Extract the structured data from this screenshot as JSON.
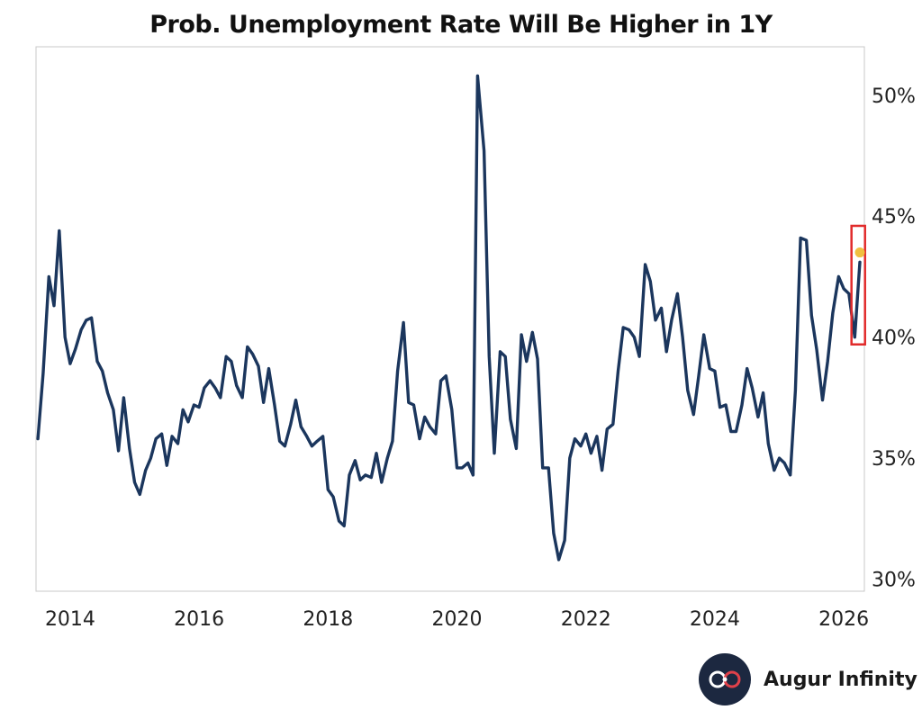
{
  "chart_data": {
    "type": "line",
    "title": "Prob. Unemployment Rate Will Be Higher in 1Y",
    "xlabel": "",
    "ylabel": "",
    "xlim": [
      2013.47,
      2026.32
    ],
    "ylim": [
      29.5,
      52
    ],
    "x_ticks": [
      {
        "value": 2014,
        "label": "2014"
      },
      {
        "value": 2016,
        "label": "2016"
      },
      {
        "value": 2018,
        "label": "2018"
      },
      {
        "value": 2020,
        "label": "2020"
      },
      {
        "value": 2022,
        "label": "2022"
      },
      {
        "value": 2024,
        "label": "2024"
      },
      {
        "value": 2026,
        "label": "2026"
      }
    ],
    "y_ticks": [
      {
        "value": 30,
        "label": "30%"
      },
      {
        "value": 35,
        "label": "35%"
      },
      {
        "value": 40,
        "label": "40%"
      },
      {
        "value": 45,
        "label": "45%"
      },
      {
        "value": 50,
        "label": "50%"
      }
    ],
    "y_axis_side": "right",
    "grid": false,
    "series": [
      {
        "name": "Prob. Unemployment Rate Will Be Higher in 1Y",
        "color": "#1b365d",
        "points": [
          [
            2013.5,
            35.8
          ],
          [
            2013.58,
            38.5
          ],
          [
            2013.67,
            42.5
          ],
          [
            2013.75,
            41.3
          ],
          [
            2013.83,
            44.4
          ],
          [
            2013.92,
            40.0
          ],
          [
            2014.0,
            38.9
          ],
          [
            2014.08,
            39.5
          ],
          [
            2014.17,
            40.3
          ],
          [
            2014.25,
            40.7
          ],
          [
            2014.33,
            40.8
          ],
          [
            2014.42,
            39.0
          ],
          [
            2014.5,
            38.6
          ],
          [
            2014.58,
            37.7
          ],
          [
            2014.67,
            37.0
          ],
          [
            2014.75,
            35.3
          ],
          [
            2014.83,
            37.5
          ],
          [
            2014.92,
            35.4
          ],
          [
            2015.0,
            34.0
          ],
          [
            2015.08,
            33.5
          ],
          [
            2015.17,
            34.5
          ],
          [
            2015.25,
            35.0
          ],
          [
            2015.33,
            35.8
          ],
          [
            2015.42,
            36.0
          ],
          [
            2015.5,
            34.7
          ],
          [
            2015.58,
            35.9
          ],
          [
            2015.67,
            35.6
          ],
          [
            2015.75,
            37.0
          ],
          [
            2015.83,
            36.5
          ],
          [
            2015.92,
            37.2
          ],
          [
            2016.0,
            37.1
          ],
          [
            2016.08,
            37.9
          ],
          [
            2016.17,
            38.2
          ],
          [
            2016.25,
            37.9
          ],
          [
            2016.33,
            37.5
          ],
          [
            2016.42,
            39.2
          ],
          [
            2016.5,
            39.0
          ],
          [
            2016.58,
            38.0
          ],
          [
            2016.67,
            37.5
          ],
          [
            2016.75,
            39.6
          ],
          [
            2016.83,
            39.3
          ],
          [
            2016.92,
            38.8
          ],
          [
            2017.0,
            37.3
          ],
          [
            2017.08,
            38.7
          ],
          [
            2017.17,
            37.2
          ],
          [
            2017.25,
            35.7
          ],
          [
            2017.33,
            35.5
          ],
          [
            2017.42,
            36.4
          ],
          [
            2017.5,
            37.4
          ],
          [
            2017.58,
            36.3
          ],
          [
            2017.67,
            35.9
          ],
          [
            2017.75,
            35.5
          ],
          [
            2017.83,
            35.7
          ],
          [
            2017.92,
            35.9
          ],
          [
            2018.0,
            33.7
          ],
          [
            2018.08,
            33.4
          ],
          [
            2018.17,
            32.4
          ],
          [
            2018.25,
            32.2
          ],
          [
            2018.33,
            34.3
          ],
          [
            2018.42,
            34.9
          ],
          [
            2018.5,
            34.1
          ],
          [
            2018.58,
            34.3
          ],
          [
            2018.67,
            34.2
          ],
          [
            2018.75,
            35.2
          ],
          [
            2018.83,
            34.0
          ],
          [
            2018.92,
            35.0
          ],
          [
            2019.0,
            35.7
          ],
          [
            2019.08,
            38.6
          ],
          [
            2019.17,
            40.6
          ],
          [
            2019.25,
            37.3
          ],
          [
            2019.33,
            37.2
          ],
          [
            2019.42,
            35.8
          ],
          [
            2019.5,
            36.7
          ],
          [
            2019.58,
            36.3
          ],
          [
            2019.67,
            36.0
          ],
          [
            2019.75,
            38.2
          ],
          [
            2019.83,
            38.4
          ],
          [
            2019.92,
            37.0
          ],
          [
            2020.0,
            34.6
          ],
          [
            2020.08,
            34.6
          ],
          [
            2020.17,
            34.8
          ],
          [
            2020.25,
            34.3
          ],
          [
            2020.32,
            50.8
          ],
          [
            2020.42,
            47.7
          ],
          [
            2020.5,
            39.2
          ],
          [
            2020.58,
            35.2
          ],
          [
            2020.67,
            39.4
          ],
          [
            2020.75,
            39.2
          ],
          [
            2020.83,
            36.6
          ],
          [
            2020.92,
            35.4
          ],
          [
            2021.0,
            40.1
          ],
          [
            2021.08,
            39.0
          ],
          [
            2021.17,
            40.2
          ],
          [
            2021.25,
            39.1
          ],
          [
            2021.33,
            34.6
          ],
          [
            2021.42,
            34.6
          ],
          [
            2021.5,
            31.9
          ],
          [
            2021.58,
            30.8
          ],
          [
            2021.67,
            31.6
          ],
          [
            2021.75,
            35.0
          ],
          [
            2021.83,
            35.8
          ],
          [
            2021.92,
            35.5
          ],
          [
            2022.0,
            36.0
          ],
          [
            2022.08,
            35.2
          ],
          [
            2022.17,
            35.9
          ],
          [
            2022.25,
            34.5
          ],
          [
            2022.33,
            36.2
          ],
          [
            2022.42,
            36.4
          ],
          [
            2022.5,
            38.6
          ],
          [
            2022.58,
            40.4
          ],
          [
            2022.67,
            40.3
          ],
          [
            2022.75,
            40.0
          ],
          [
            2022.83,
            39.2
          ],
          [
            2022.92,
            43.0
          ],
          [
            2023.0,
            42.3
          ],
          [
            2023.08,
            40.7
          ],
          [
            2023.17,
            41.2
          ],
          [
            2023.25,
            39.4
          ],
          [
            2023.33,
            40.7
          ],
          [
            2023.42,
            41.8
          ],
          [
            2023.5,
            40.0
          ],
          [
            2023.58,
            37.8
          ],
          [
            2023.67,
            36.8
          ],
          [
            2023.75,
            38.4
          ],
          [
            2023.83,
            40.1
          ],
          [
            2023.92,
            38.7
          ],
          [
            2024.0,
            38.6
          ],
          [
            2024.08,
            37.1
          ],
          [
            2024.17,
            37.2
          ],
          [
            2024.25,
            36.1
          ],
          [
            2024.33,
            36.1
          ],
          [
            2024.42,
            37.2
          ],
          [
            2024.5,
            38.7
          ],
          [
            2024.58,
            37.9
          ],
          [
            2024.67,
            36.7
          ],
          [
            2024.75,
            37.7
          ],
          [
            2024.83,
            35.6
          ],
          [
            2024.92,
            34.5
          ],
          [
            2025.0,
            35.0
          ],
          [
            2025.08,
            34.8
          ],
          [
            2025.17,
            34.3
          ],
          [
            2025.25,
            37.8
          ],
          [
            2025.33,
            44.1
          ],
          [
            2025.42,
            44.0
          ],
          [
            2025.5,
            40.9
          ],
          [
            2025.58,
            39.5
          ],
          [
            2025.67,
            37.4
          ],
          [
            2025.75,
            39.0
          ],
          [
            2025.83,
            41.0
          ],
          [
            2025.92,
            42.5
          ],
          [
            2026.0,
            42.0
          ],
          [
            2026.08,
            41.8
          ],
          [
            2026.17,
            40.0
          ],
          [
            2026.25,
            43.1
          ]
        ]
      }
    ],
    "highlight": {
      "x": 2026.25,
      "y": 43.5,
      "marker_color": "#f0c040",
      "box_color": "#e12b2b",
      "box_x_range": [
        2026.12,
        2026.33
      ],
      "box_y_range": [
        39.7,
        44.6
      ]
    }
  },
  "branding": {
    "name": "Augur Infinity",
    "logo_icon": "infinity-icon"
  }
}
